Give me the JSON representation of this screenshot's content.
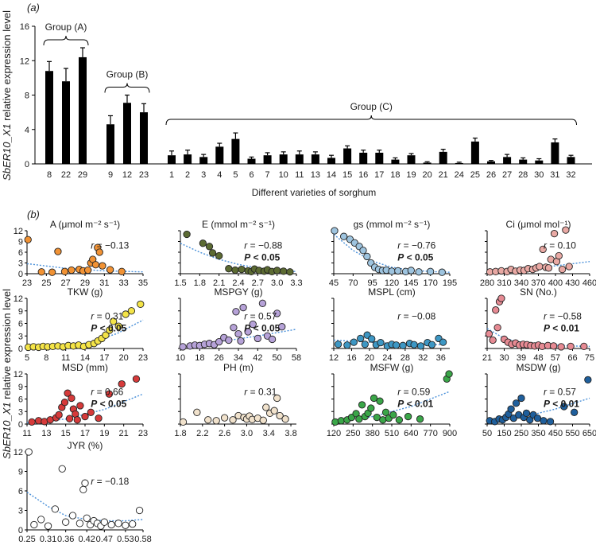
{
  "figure": {
    "panel_a_label": "(a)",
    "panel_b_label": "(b)",
    "y_axis_title_a_gene": "SbER10_X1",
    "y_axis_title_a_rest": " relative expression level",
    "y_axis_title_b_gene": "SbER10_X1",
    "y_axis_title_b_rest": " relative expression level"
  },
  "chart_data": [
    {
      "type": "bar",
      "panel": "(a)",
      "xlabel": "Different varieties of sorghum",
      "ylabel": "SbER10_X1 relative expression level",
      "ylim": [
        0,
        16
      ],
      "yticks": [
        "0",
        "4",
        "8",
        "12",
        "16"
      ],
      "groups": [
        {
          "label": "Group (A)",
          "categories": [
            "8",
            "22",
            "29"
          ],
          "values": [
            10.8,
            9.6,
            12.4
          ],
          "errors": [
            1.1,
            1.5,
            1.1
          ]
        },
        {
          "label": "Group (B)",
          "categories": [
            "9",
            "12",
            "23"
          ],
          "values": [
            4.6,
            7.1,
            6.0
          ],
          "errors": [
            1.0,
            0.9,
            1.0
          ]
        },
        {
          "label": "Group (C)",
          "categories": [
            "1",
            "2",
            "3",
            "4",
            "5",
            "6",
            "7",
            "10",
            "11",
            "13",
            "14",
            "15",
            "16",
            "17",
            "18",
            "19",
            "20",
            "21",
            "24",
            "25",
            "26",
            "27",
            "28",
            "30",
            "31",
            "32"
          ],
          "values": [
            1.0,
            1.1,
            0.8,
            2.0,
            2.9,
            0.6,
            1.0,
            1.1,
            1.1,
            1.1,
            0.7,
            1.8,
            1.3,
            1.3,
            0.5,
            1.0,
            0.15,
            1.4,
            0.1,
            2.6,
            0.3,
            0.8,
            0.5,
            0.4,
            2.5,
            0.8
          ],
          "errors": [
            0.5,
            0.5,
            0.3,
            0.4,
            0.7,
            0.2,
            0.3,
            0.3,
            0.4,
            0.3,
            0.3,
            0.3,
            0.3,
            0.3,
            0.2,
            0.2,
            0.1,
            0.3,
            0.1,
            0.4,
            0.1,
            0.3,
            0.2,
            0.2,
            0.4,
            0.2
          ]
        }
      ]
    },
    {
      "type": "scatter",
      "panel": "(b)",
      "title": "A (μmol m⁻² s⁻¹)",
      "xlim": [
        23,
        35
      ],
      "ylim": [
        0,
        12
      ],
      "xticks": [
        "23",
        "25",
        "27",
        "29",
        "31",
        "33",
        "35"
      ],
      "yticks": [
        "0",
        "3",
        "6",
        "9",
        "12"
      ],
      "color": "#f19234",
      "r_text": "r = −0.13",
      "p_text": "",
      "x": [
        23.1,
        24.5,
        25.6,
        26.2,
        26.9,
        27.6,
        28.4,
        28.8,
        29.3,
        29.6,
        29.8,
        30.1,
        30.3,
        30.5,
        30.8,
        31.6,
        32.8
      ],
      "y": [
        9.5,
        0.5,
        0.4,
        6.2,
        0.6,
        1.0,
        1.2,
        0.8,
        1.0,
        3.0,
        4.0,
        2.5,
        7.3,
        6.0,
        2.2,
        1.1,
        0.6
      ],
      "trend": [
        [
          23,
          2.8
        ],
        [
          27,
          1.5
        ],
        [
          31,
          0.8
        ],
        [
          35,
          0.5
        ]
      ]
    },
    {
      "type": "scatter",
      "panel": "(b)",
      "title": "E (mmol m⁻² s⁻¹)",
      "xlim": [
        1.5,
        3.3
      ],
      "ylim": [
        0,
        12
      ],
      "xticks": [
        "1.5",
        "1.8",
        "2.1",
        "2.4",
        "2.7",
        "3.0",
        "3.3"
      ],
      "yticks": [],
      "color": "#5c6b33",
      "r_text": "r = −0.88",
      "p_text": "P < 0.05",
      "x": [
        1.6,
        1.85,
        1.95,
        2.0,
        2.1,
        2.25,
        2.35,
        2.45,
        2.55,
        2.6,
        2.65,
        2.72,
        2.8,
        2.85,
        2.92,
        3.0,
        3.1,
        3.2
      ],
      "y": [
        11.0,
        8.5,
        7.6,
        5.8,
        5.0,
        1.4,
        1.0,
        1.2,
        0.8,
        0.6,
        1.3,
        0.9,
        0.7,
        1.1,
        0.6,
        0.9,
        0.7,
        0.5
      ],
      "trend": [
        [
          1.5,
          8.5
        ],
        [
          1.8,
          6.0
        ],
        [
          2.1,
          4.0
        ],
        [
          2.4,
          2.6
        ],
        [
          2.7,
          1.6
        ],
        [
          3.0,
          1.0
        ],
        [
          3.3,
          0.6
        ]
      ]
    },
    {
      "type": "scatter",
      "panel": "(b)",
      "title": "gs (mmol m⁻² s⁻¹)",
      "xlim": [
        45,
        195
      ],
      "ylim": [
        0,
        12
      ],
      "xticks": [
        "45",
        "70",
        "95",
        "120",
        "145",
        "170",
        "195"
      ],
      "yticks": [],
      "color": "#9ec4df",
      "r_text": "r = −0.76",
      "p_text": "P < 0.05",
      "x": [
        46,
        58,
        66,
        72,
        78,
        83,
        88,
        93,
        98,
        103,
        108,
        113,
        120,
        128,
        138,
        145,
        155,
        170,
        185
      ],
      "y": [
        12.0,
        10.4,
        9.6,
        8.6,
        7.6,
        6.5,
        4.8,
        3.0,
        1.8,
        1.2,
        0.9,
        1.0,
        0.7,
        0.8,
        0.6,
        0.9,
        0.5,
        0.6,
        0.4
      ],
      "trend": [
        [
          45,
          11.0
        ],
        [
          70,
          6.5
        ],
        [
          95,
          3.5
        ],
        [
          120,
          1.8
        ],
        [
          145,
          1.0
        ],
        [
          170,
          0.6
        ],
        [
          195,
          0.4
        ]
      ]
    },
    {
      "type": "scatter",
      "panel": "(b)",
      "title": "Ci (μmol mol⁻¹)",
      "xlim": [
        280,
        460
      ],
      "ylim": [
        0,
        12
      ],
      "xticks": [
        "280",
        "310",
        "340",
        "370",
        "400",
        "430",
        "460"
      ],
      "yticks": [],
      "color": "#e9a9a4",
      "r_text": "r = 0.10",
      "p_text": "",
      "x": [
        285,
        295,
        305,
        315,
        322,
        330,
        338,
        345,
        352,
        360,
        366,
        372,
        378,
        383,
        388,
        392,
        398,
        402,
        406,
        412,
        418,
        424
      ],
      "y": [
        0.5,
        0.6,
        0.8,
        0.6,
        1.2,
        0.7,
        1.0,
        0.9,
        1.4,
        1.2,
        1.6,
        2.0,
        6.8,
        1.8,
        1.6,
        4.0,
        11.2,
        3.4,
        5.0,
        1.2,
        12.2,
        2.0
      ],
      "trend": [
        [
          280,
          0.8
        ],
        [
          340,
          1.3
        ],
        [
          400,
          2.2
        ],
        [
          460,
          3.4
        ]
      ]
    },
    {
      "type": "scatter",
      "panel": "(b)",
      "title": "TKW (g)",
      "xlim": [
        5,
        23
      ],
      "ylim": [
        0,
        12
      ],
      "xticks": [
        "5",
        "8",
        "11",
        "14",
        "17",
        "20",
        "23"
      ],
      "yticks": [
        "0",
        "3",
        "6",
        "9",
        "12"
      ],
      "color": "#f4e447",
      "r_text": "r = 0.31",
      "p_text": "P < 0.05",
      "x": [
        5.2,
        6.0,
        6.8,
        7.5,
        8.2,
        9.0,
        9.8,
        10.6,
        11.4,
        12.2,
        13.0,
        13.8,
        14.6,
        15.4,
        16.0,
        16.6,
        17.2,
        17.8,
        18.4,
        19.2,
        20.3,
        21.2,
        22.6
      ],
      "y": [
        0.3,
        0.4,
        0.3,
        0.5,
        0.4,
        0.5,
        0.6,
        0.4,
        0.7,
        0.6,
        0.8,
        0.5,
        0.9,
        1.2,
        1.8,
        2.4,
        3.2,
        4.4,
        6.5,
        5.3,
        8.2,
        9.0,
        10.6
      ],
      "trend": [
        [
          5,
          0.2
        ],
        [
          11,
          0.6
        ],
        [
          15,
          1.5
        ],
        [
          19,
          3.6
        ],
        [
          23,
          6.8
        ]
      ]
    },
    {
      "type": "scatter",
      "panel": "(b)",
      "title": "MSPGY (g)",
      "xlim": [
        10,
        58
      ],
      "ylim": [
        0,
        12
      ],
      "xticks": [
        "10",
        "18",
        "26",
        "34",
        "42",
        "50",
        "58"
      ],
      "yticks": [],
      "color": "#b6a2d8",
      "r_text": "r = 0.57",
      "p_text": "P < 0.05",
      "x": [
        11,
        14,
        16,
        18,
        20,
        22,
        24,
        26,
        28,
        30,
        32,
        33,
        34,
        35,
        36,
        38,
        40,
        42,
        44,
        46,
        48,
        50,
        52
      ],
      "y": [
        0.4,
        0.6,
        0.8,
        0.7,
        1.0,
        1.2,
        0.9,
        1.6,
        2.6,
        2.0,
        5.0,
        8.8,
        3.5,
        1.8,
        9.8,
        4.0,
        5.8,
        2.4,
        10.8,
        3.0,
        2.2,
        8.4,
        5.2
      ],
      "trend": [
        [
          10,
          0.5
        ],
        [
          26,
          1.6
        ],
        [
          42,
          3.0
        ],
        [
          58,
          4.6
        ]
      ]
    },
    {
      "type": "scatter",
      "panel": "(b)",
      "title": "MSPL (cm)",
      "xlim": [
        12,
        38
      ],
      "ylim": [
        0,
        12
      ],
      "xticks": [
        "12",
        "16",
        "20",
        "24",
        "28",
        "32",
        "36"
      ],
      "yticks": [],
      "color": "#3d97c4",
      "r_text": "r = −0.08",
      "p_text": "",
      "x": [
        13,
        15,
        16.5,
        18,
        19,
        19.5,
        20.5,
        21.5,
        22.5,
        24,
        25,
        26,
        27.5,
        29,
        30,
        31.5,
        33,
        34,
        35.5,
        36.5
      ],
      "y": [
        1.0,
        0.8,
        1.5,
        2.4,
        1.0,
        3.2,
        2.3,
        0.9,
        1.4,
        0.6,
        1.0,
        0.8,
        0.7,
        1.2,
        0.9,
        0.6,
        1.4,
        0.9,
        2.4,
        1.5
      ],
      "trend": [
        [
          12,
          2.0
        ],
        [
          20,
          1.5
        ],
        [
          28,
          1.1
        ],
        [
          36,
          0.9
        ]
      ]
    },
    {
      "type": "scatter",
      "panel": "(b)",
      "title": "SN (No.)",
      "xlim": [
        21,
        75
      ],
      "ylim": [
        0,
        12
      ],
      "xticks": [
        "21",
        "30",
        "39",
        "48",
        "57",
        "66",
        "75"
      ],
      "yticks": [],
      "color": "#e68a93",
      "r_text": "r = −0.58",
      "p_text": "P < 0.01",
      "x": [
        22,
        24,
        25.5,
        26.5,
        27.5,
        28.5,
        30,
        32,
        34,
        36,
        38,
        40,
        42,
        44,
        46,
        48,
        50,
        53,
        56,
        60,
        65,
        72
      ],
      "y": [
        3.5,
        2.0,
        9.2,
        5.0,
        11.2,
        12.0,
        2.2,
        1.5,
        1.0,
        1.3,
        0.8,
        1.0,
        0.9,
        0.7,
        0.6,
        0.8,
        0.5,
        0.7,
        0.6,
        0.4,
        0.5,
        0.5
      ],
      "trend": [
        [
          21,
          4.8
        ],
        [
          30,
          2.4
        ],
        [
          39,
          1.5
        ],
        [
          48,
          1.0
        ],
        [
          57,
          0.8
        ],
        [
          66,
          0.6
        ],
        [
          75,
          0.5
        ]
      ]
    },
    {
      "type": "scatter",
      "panel": "(b)",
      "title": "MSD (mm)",
      "xlim": [
        11,
        23
      ],
      "ylim": [
        0,
        12
      ],
      "xticks": [
        "11",
        "13",
        "15",
        "17",
        "19",
        "21",
        "23"
      ],
      "yticks": [
        "0",
        "3",
        "6",
        "9",
        "12"
      ],
      "color": "#d63a3a",
      "r_text": "r = 0.66",
      "p_text": "P < 0.05",
      "x": [
        11.5,
        12.2,
        12.8,
        13.4,
        14.0,
        14.3,
        14.6,
        14.9,
        15.2,
        15.4,
        15.6,
        15.8,
        16.0,
        16.2,
        16.5,
        17.0,
        17.6,
        18.4,
        19.5,
        20.8,
        22.3
      ],
      "y": [
        0.5,
        0.8,
        0.6,
        1.0,
        1.5,
        2.2,
        4.0,
        5.2,
        7.4,
        1.3,
        6.2,
        3.6,
        2.4,
        1.0,
        4.4,
        1.8,
        2.8,
        1.4,
        7.2,
        9.6,
        10.8
      ],
      "trend": [
        [
          11,
          0.3
        ],
        [
          15,
          1.2
        ],
        [
          19,
          3.5
        ],
        [
          23,
          7.2
        ]
      ]
    },
    {
      "type": "scatter",
      "panel": "(b)",
      "title": "PH (m)",
      "xlim": [
        1.8,
        3.9
      ],
      "ylim": [
        0,
        12
      ],
      "xticks": [
        "1.8",
        "2.2",
        "2.6",
        "3.0",
        "3.4",
        "3.8"
      ],
      "yticks": [],
      "color": "#f1e2cc",
      "r_text": "r = 0.31",
      "p_text": "",
      "x": [
        1.85,
        2.1,
        2.3,
        2.45,
        2.6,
        2.75,
        2.85,
        2.95,
        3.0,
        3.05,
        3.1,
        3.2,
        3.3,
        3.35,
        3.42,
        3.5,
        3.55,
        3.6,
        3.7
      ],
      "y": [
        0.5,
        2.8,
        1.0,
        0.8,
        1.5,
        1.0,
        2.0,
        1.6,
        1.2,
        1.9,
        1.1,
        1.4,
        0.9,
        4.0,
        2.6,
        3.2,
        6.2,
        2.0,
        1.2
      ],
      "trend": []
    },
    {
      "type": "scatter",
      "panel": "(b)",
      "title": "MSFW (g)",
      "xlim": [
        120,
        900
      ],
      "ylim": [
        0,
        12
      ],
      "xticks": [
        "120",
        "250",
        "380",
        "510",
        "640",
        "770",
        "900"
      ],
      "yticks": [],
      "color": "#3aa648",
      "r_text": "r = 0.59",
      "p_text": "P < 0.01",
      "x": [
        130,
        170,
        210,
        240,
        270,
        290,
        310,
        330,
        350,
        370,
        390,
        410,
        430,
        450,
        470,
        490,
        520,
        560,
        620,
        700,
        880,
        895
      ],
      "y": [
        0.5,
        0.8,
        1.0,
        1.6,
        2.5,
        1.2,
        4.6,
        1.8,
        2.6,
        3.8,
        6.2,
        1.6,
        5.5,
        1.0,
        2.8,
        1.4,
        2.2,
        1.0,
        1.8,
        1.2,
        10.8,
        12.0
      ],
      "trend": [
        [
          120,
          0.3
        ],
        [
          380,
          1.8
        ],
        [
          640,
          4.2
        ],
        [
          900,
          7.8
        ]
      ]
    },
    {
      "type": "scatter",
      "panel": "(b)",
      "title": "MSDW (g)",
      "xlim": [
        50,
        650
      ],
      "ylim": [
        0,
        12
      ],
      "xticks": [
        "50",
        "150",
        "250",
        "350",
        "450",
        "550",
        "650"
      ],
      "yticks": [],
      "color": "#1f5f9c",
      "r_text": "r = 0.57",
      "p_text": "P < 0.01",
      "x": [
        65,
        95,
        120,
        140,
        160,
        175,
        190,
        205,
        220,
        235,
        250,
        265,
        280,
        300,
        320,
        345,
        380,
        420,
        500,
        560,
        640
      ],
      "y": [
        0.8,
        0.6,
        1.2,
        1.0,
        1.6,
        2.4,
        3.6,
        1.4,
        5.0,
        2.2,
        6.2,
        1.6,
        2.6,
        1.0,
        2.2,
        1.4,
        0.8,
        0.6,
        4.2,
        2.8,
        10.6
      ],
      "trend": [
        [
          50,
          0.3
        ],
        [
          250,
          1.6
        ],
        [
          450,
          3.6
        ],
        [
          650,
          6.2
        ]
      ]
    },
    {
      "type": "scatter",
      "panel": "(b)",
      "title": "JYR (%)",
      "xlim": [
        0.25,
        0.58
      ],
      "ylim": [
        0,
        12
      ],
      "xticks": [
        "0.25",
        "0.31",
        "0.36",
        "0.42",
        "0.47",
        "0.53",
        "0.58"
      ],
      "yticks": [
        "0",
        "3",
        "6",
        "9",
        "12"
      ],
      "color": "#ffffff",
      "r_text": "r = −0.18",
      "p_text": "",
      "x": [
        0.255,
        0.27,
        0.29,
        0.31,
        0.33,
        0.35,
        0.36,
        0.38,
        0.4,
        0.41,
        0.415,
        0.42,
        0.43,
        0.44,
        0.45,
        0.46,
        0.47,
        0.49,
        0.51,
        0.53,
        0.55,
        0.57
      ],
      "y": [
        12.0,
        0.8,
        1.6,
        0.6,
        3.2,
        9.4,
        1.2,
        2.2,
        1.0,
        6.2,
        7.2,
        1.8,
        0.8,
        1.4,
        1.0,
        0.6,
        1.2,
        0.8,
        1.0,
        0.7,
        0.9,
        3.0
      ],
      "trend": [
        [
          0.25,
          5.8
        ],
        [
          0.31,
          3.6
        ],
        [
          0.36,
          2.2
        ],
        [
          0.42,
          1.6
        ],
        [
          0.47,
          1.4
        ],
        [
          0.53,
          1.4
        ],
        [
          0.58,
          1.6
        ]
      ]
    }
  ]
}
